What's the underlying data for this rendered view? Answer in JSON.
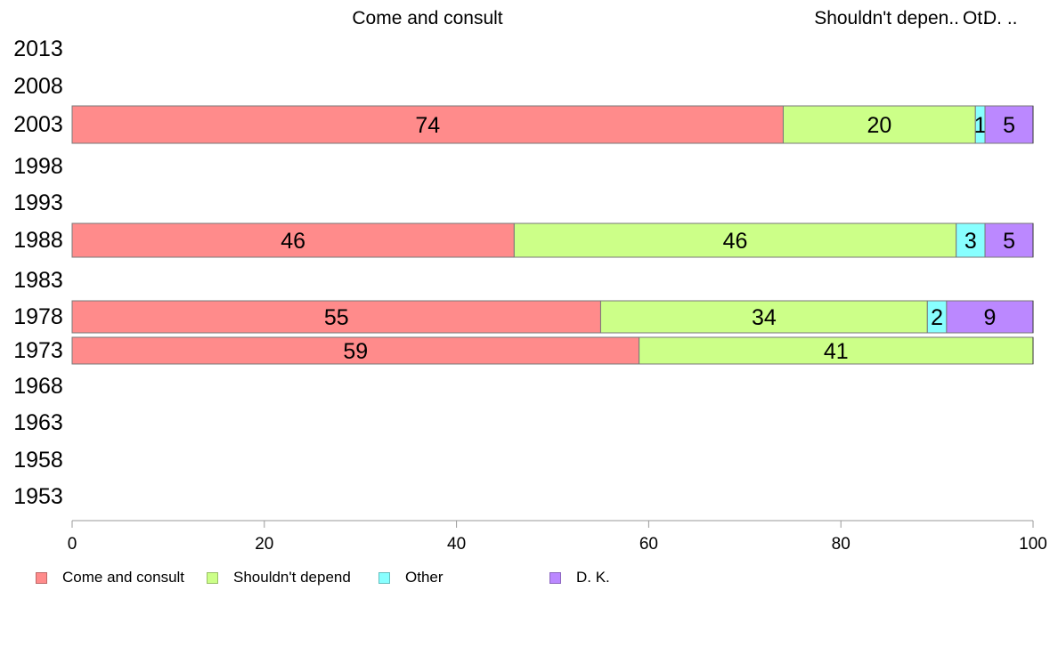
{
  "chart_data": {
    "type": "bar",
    "orientation": "horizontal",
    "stacked": true,
    "categories": [
      "2013",
      "2008",
      "2003",
      "1998",
      "1993",
      "1988",
      "1983",
      "1978",
      "1973",
      "1968",
      "1963",
      "1958",
      "1953"
    ],
    "series": [
      {
        "name": "Come and consult",
        "color": "#ff8b8b",
        "values": [
          null,
          null,
          74,
          null,
          null,
          46,
          null,
          55,
          59,
          null,
          null,
          null,
          null
        ]
      },
      {
        "name": "Shouldn't depend",
        "color": "#ccff88",
        "values": [
          null,
          null,
          20,
          null,
          null,
          46,
          null,
          34,
          41,
          null,
          null,
          null,
          null
        ]
      },
      {
        "name": "Other",
        "color": "#88ffff",
        "values": [
          null,
          null,
          1,
          null,
          null,
          3,
          null,
          2,
          0,
          null,
          null,
          null,
          null
        ]
      },
      {
        "name": "D. K.",
        "color": "#bb88ff",
        "values": [
          null,
          null,
          5,
          null,
          null,
          5,
          null,
          9,
          0,
          null,
          null,
          null,
          null
        ]
      }
    ],
    "top_labels": [
      "Come and consult",
      "Shouldn't depen..",
      "Ot.",
      "D. .."
    ],
    "x_ticks": [
      0,
      20,
      40,
      60,
      80,
      100
    ],
    "xlim": [
      0,
      100
    ],
    "xlabel": "",
    "ylabel": "",
    "grid": false,
    "legend_position": "bottom-left"
  }
}
